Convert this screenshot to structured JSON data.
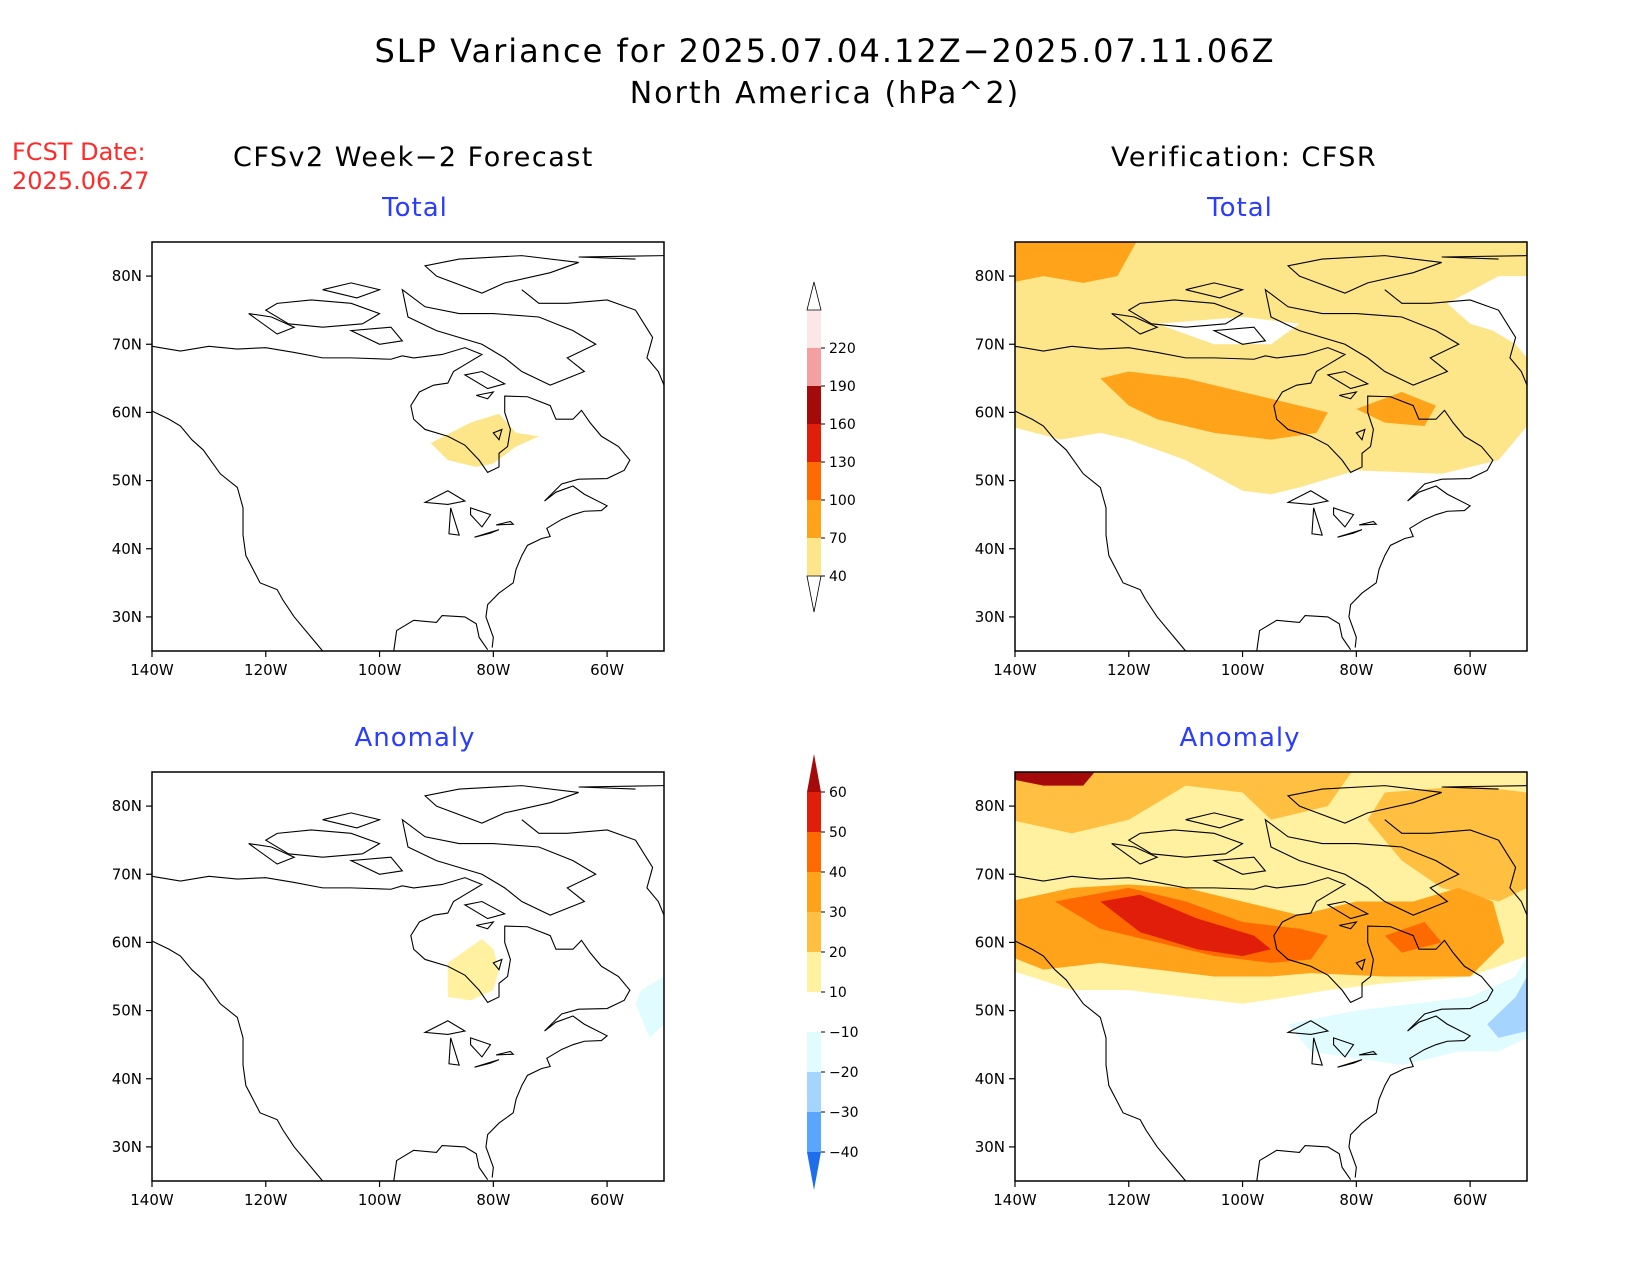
{
  "title": {
    "line1": "SLP Variance for 2025.07.04.12Z−2025.07.11.06Z",
    "line2": "North America (hPa^2)"
  },
  "forecast_date": {
    "label": "FCST Date:",
    "value": "2025.06.27"
  },
  "columns": {
    "left": "CFSv2 Week−2 Forecast",
    "right": "Verification: CFSR"
  },
  "panel_titles": {
    "total": "Total",
    "anomaly": "Anomaly"
  },
  "axes": {
    "lon_ticks": [
      "140W",
      "120W",
      "100W",
      "80W",
      "60W"
    ],
    "lat_ticks": [
      "80N",
      "70N",
      "60N",
      "50N",
      "40N",
      "30N"
    ]
  },
  "colorbars": {
    "total": {
      "levels": [
        "40",
        "70",
        "100",
        "130",
        "160",
        "190",
        "220"
      ],
      "colors": [
        "#fde68a",
        "#ffa31a",
        "#ff6a00",
        "#e01e0a",
        "#a50a0a",
        "#f5a0a0",
        "#fde6e6"
      ]
    },
    "anomaly": {
      "levels": [
        "60",
        "50",
        "40",
        "30",
        "20",
        "10",
        "−10",
        "−20",
        "−30",
        "−40"
      ],
      "colors": [
        "#a50a0a",
        "#e01e0a",
        "#ff6a00",
        "#ffa31a",
        "#ffbf40",
        "#fff1a0",
        "#ffffff",
        "#e0fcff",
        "#a4d4ff",
        "#5aa6ff",
        "#1e6eeb"
      ]
    }
  }
}
